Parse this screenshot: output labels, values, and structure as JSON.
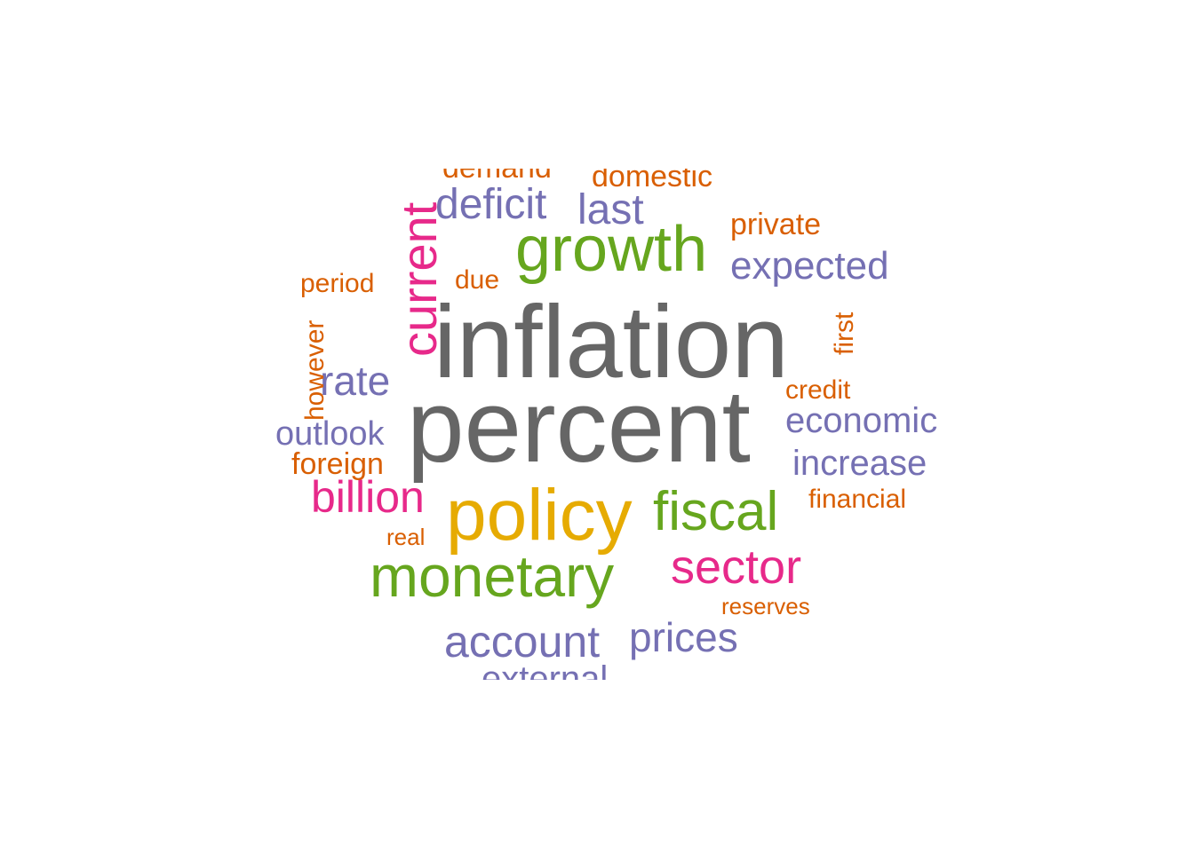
{
  "palette": {
    "gray": "#666666",
    "purple": "#7570b3",
    "green": "#66a61e",
    "magenta": "#e7298a",
    "yellow": "#e6ab02",
    "orange": "#d95f02"
  },
  "words": [
    {
      "text": "inflation",
      "color": "gray"
    },
    {
      "text": "percent",
      "color": "gray"
    },
    {
      "text": "policy",
      "color": "yellow"
    },
    {
      "text": "growth",
      "color": "green"
    },
    {
      "text": "monetary",
      "color": "green"
    },
    {
      "text": "fiscal",
      "color": "green"
    },
    {
      "text": "current",
      "color": "magenta"
    },
    {
      "text": "sector",
      "color": "magenta"
    },
    {
      "text": "billion",
      "color": "magenta"
    },
    {
      "text": "deficit",
      "color": "purple"
    },
    {
      "text": "last",
      "color": "purple"
    },
    {
      "text": "expected",
      "color": "purple"
    },
    {
      "text": "rate",
      "color": "purple"
    },
    {
      "text": "economic",
      "color": "purple"
    },
    {
      "text": "increase",
      "color": "purple"
    },
    {
      "text": "outlook",
      "color": "purple"
    },
    {
      "text": "account",
      "color": "purple"
    },
    {
      "text": "prices",
      "color": "purple"
    },
    {
      "text": "external",
      "color": "purple"
    },
    {
      "text": "demand",
      "color": "orange"
    },
    {
      "text": "domestic",
      "color": "orange"
    },
    {
      "text": "private",
      "color": "orange"
    },
    {
      "text": "period",
      "color": "orange"
    },
    {
      "text": "due",
      "color": "orange"
    },
    {
      "text": "first",
      "color": "orange"
    },
    {
      "text": "however",
      "color": "orange"
    },
    {
      "text": "credit",
      "color": "orange"
    },
    {
      "text": "foreign",
      "color": "orange"
    },
    {
      "text": "financial",
      "color": "orange"
    },
    {
      "text": "real",
      "color": "orange"
    },
    {
      "text": "reserves",
      "color": "orange"
    }
  ]
}
